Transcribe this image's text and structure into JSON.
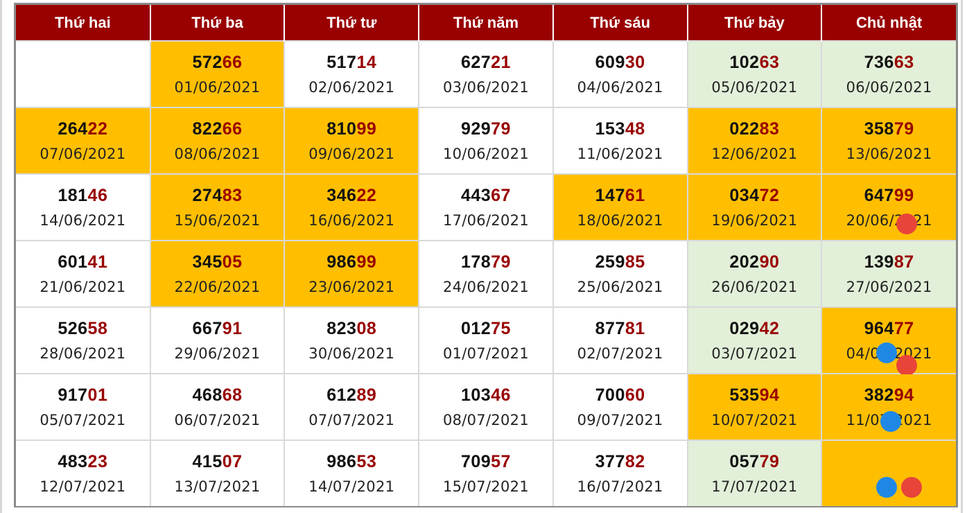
{
  "colors": {
    "header_bg": "#990000",
    "header_text": "#ffffff",
    "tail_digits": "#990000",
    "highlight_orange": "#ffbf00",
    "highlight_green": "#e2efd9",
    "marker_red": "#e8443a",
    "marker_blue": "#1f88e5"
  },
  "headers": [
    "Thứ hai",
    "Thứ ba",
    "Thứ tư",
    "Thứ năm",
    "Thứ sáu",
    "Thứ bảy",
    "Chủ nhật"
  ],
  "rows": [
    [
      {
        "bg": "white"
      },
      {
        "head": "572",
        "tail": "66",
        "date": "01/06/2021",
        "bg": "orange"
      },
      {
        "head": "517",
        "tail": "14",
        "date": "02/06/2021",
        "bg": "white"
      },
      {
        "head": "627",
        "tail": "21",
        "date": "03/06/2021",
        "bg": "white"
      },
      {
        "head": "609",
        "tail": "30",
        "date": "04/06/2021",
        "bg": "white"
      },
      {
        "head": "102",
        "tail": "63",
        "date": "05/06/2021",
        "bg": "green"
      },
      {
        "head": "736",
        "tail": "63",
        "date": "06/06/2021",
        "bg": "green"
      }
    ],
    [
      {
        "head": "264",
        "tail": "22",
        "date": "07/06/2021",
        "bg": "orange"
      },
      {
        "head": "822",
        "tail": "66",
        "date": "08/06/2021",
        "bg": "orange"
      },
      {
        "head": "810",
        "tail": "99",
        "date": "09/06/2021",
        "bg": "orange"
      },
      {
        "head": "929",
        "tail": "79",
        "date": "10/06/2021",
        "bg": "white"
      },
      {
        "head": "153",
        "tail": "48",
        "date": "11/06/2021",
        "bg": "white"
      },
      {
        "head": "022",
        "tail": "83",
        "date": "12/06/2021",
        "bg": "orange"
      },
      {
        "head": "358",
        "tail": "79",
        "date": "13/06/2021",
        "bg": "orange"
      }
    ],
    [
      {
        "head": "181",
        "tail": "46",
        "date": "14/06/2021",
        "bg": "white"
      },
      {
        "head": "274",
        "tail": "83",
        "date": "15/06/2021",
        "bg": "orange"
      },
      {
        "head": "346",
        "tail": "22",
        "date": "16/06/2021",
        "bg": "orange"
      },
      {
        "head": "443",
        "tail": "67",
        "date": "17/06/2021",
        "bg": "white"
      },
      {
        "head": "147",
        "tail": "61",
        "date": "18/06/2021",
        "bg": "orange"
      },
      {
        "head": "034",
        "tail": "72",
        "date": "19/06/2021",
        "bg": "orange"
      },
      {
        "head": "647",
        "tail": "99",
        "date": "20/06/2021",
        "bg": "orange",
        "markers": [
          "red"
        ]
      }
    ],
    [
      {
        "head": "601",
        "tail": "41",
        "date": "21/06/2021",
        "bg": "white"
      },
      {
        "head": "345",
        "tail": "05",
        "date": "22/06/2021",
        "bg": "orange"
      },
      {
        "head": "986",
        "tail": "99",
        "date": "23/06/2021",
        "bg": "orange"
      },
      {
        "head": "178",
        "tail": "79",
        "date": "24/06/2021",
        "bg": "white"
      },
      {
        "head": "259",
        "tail": "85",
        "date": "25/06/2021",
        "bg": "white"
      },
      {
        "head": "202",
        "tail": "90",
        "date": "26/06/2021",
        "bg": "green"
      },
      {
        "head": "139",
        "tail": "87",
        "date": "27/06/2021",
        "bg": "green"
      }
    ],
    [
      {
        "head": "526",
        "tail": "58",
        "date": "28/06/2021",
        "bg": "white"
      },
      {
        "head": "667",
        "tail": "91",
        "date": "29/06/2021",
        "bg": "white"
      },
      {
        "head": "823",
        "tail": "08",
        "date": "30/06/2021",
        "bg": "white"
      },
      {
        "head": "012",
        "tail": "75",
        "date": "01/07/2021",
        "bg": "white"
      },
      {
        "head": "877",
        "tail": "81",
        "date": "02/07/2021",
        "bg": "white"
      },
      {
        "head": "029",
        "tail": "42",
        "date": "03/07/2021",
        "bg": "green"
      },
      {
        "head": "964",
        "tail": "77",
        "date": "04/07/2021",
        "bg": "orange",
        "markers": [
          "blue",
          "red"
        ]
      }
    ],
    [
      {
        "head": "917",
        "tail": "01",
        "date": "05/07/2021",
        "bg": "white"
      },
      {
        "head": "468",
        "tail": "68",
        "date": "06/07/2021",
        "bg": "white"
      },
      {
        "head": "612",
        "tail": "89",
        "date": "07/07/2021",
        "bg": "white"
      },
      {
        "head": "103",
        "tail": "46",
        "date": "08/07/2021",
        "bg": "white"
      },
      {
        "head": "700",
        "tail": "60",
        "date": "09/07/2021",
        "bg": "white"
      },
      {
        "head": "535",
        "tail": "94",
        "date": "10/07/2021",
        "bg": "orange"
      },
      {
        "head": "382",
        "tail": "94",
        "date": "11/07/2021",
        "bg": "orange",
        "markers": [
          "blue"
        ]
      }
    ],
    [
      {
        "head": "483",
        "tail": "23",
        "date": "12/07/2021",
        "bg": "white"
      },
      {
        "head": "415",
        "tail": "07",
        "date": "13/07/2021",
        "bg": "white"
      },
      {
        "head": "986",
        "tail": "53",
        "date": "14/07/2021",
        "bg": "white"
      },
      {
        "head": "709",
        "tail": "57",
        "date": "15/07/2021",
        "bg": "white"
      },
      {
        "head": "377",
        "tail": "82",
        "date": "16/07/2021",
        "bg": "white"
      },
      {
        "head": "057",
        "tail": "79",
        "date": "17/07/2021",
        "bg": "green"
      },
      {
        "bg": "orange",
        "markers": [
          "blue",
          "red"
        ]
      }
    ]
  ]
}
